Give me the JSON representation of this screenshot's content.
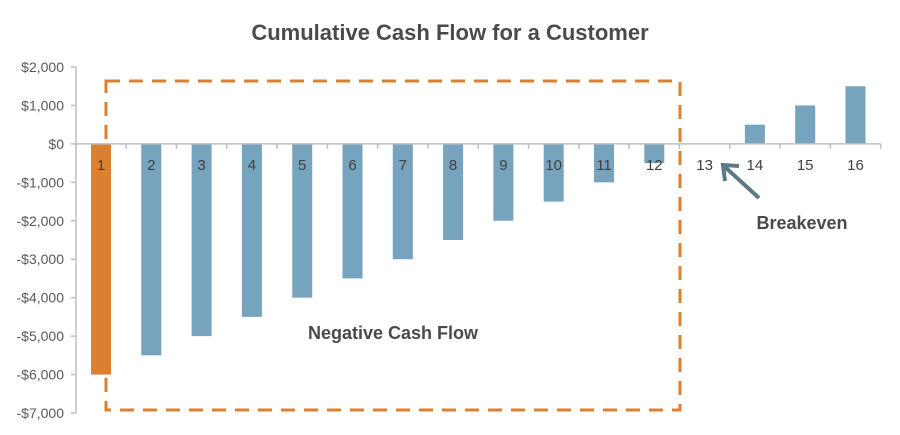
{
  "chart_data": {
    "type": "bar",
    "title": "Cumulative Cash Flow for a Customer",
    "xlabel": "",
    "ylabel": "",
    "categories": [
      "1",
      "2",
      "3",
      "4",
      "5",
      "6",
      "7",
      "8",
      "9",
      "10",
      "11",
      "12",
      "13",
      "14",
      "15",
      "16"
    ],
    "values": [
      -6000,
      -5500,
      -5000,
      -4500,
      -4000,
      -3500,
      -3000,
      -2500,
      -2000,
      -1500,
      -1000,
      -500,
      0,
      500,
      1000,
      1500
    ],
    "highlight_index": 0,
    "ylim": [
      -7000,
      2000
    ],
    "yticks": [
      2000,
      1000,
      0,
      -1000,
      -2000,
      -3000,
      -4000,
      -5000,
      -6000,
      -7000
    ],
    "ytick_labels": [
      "$2,000",
      "$1,000",
      "$0",
      "-$1,000",
      "-$2,000",
      "-$3,000",
      "-$4,000",
      "-$5,000",
      "-$6,000",
      "-$7,000"
    ],
    "grid": false,
    "legend": null,
    "annotations": [
      {
        "text": "Negative Cash Flow",
        "type": "dashed-box",
        "covers_categories": [
          "1",
          "12"
        ]
      },
      {
        "text": "Breakeven",
        "type": "arrow",
        "points_to_category": "13"
      }
    ],
    "colors": {
      "bar": "#76a3bd",
      "highlight_bar": "#dc7f2e",
      "dashed_box": "#dc7f2e",
      "arrow": "#5a7a88",
      "axis": "#bfbfbf",
      "text": "#4a4a4a"
    }
  }
}
